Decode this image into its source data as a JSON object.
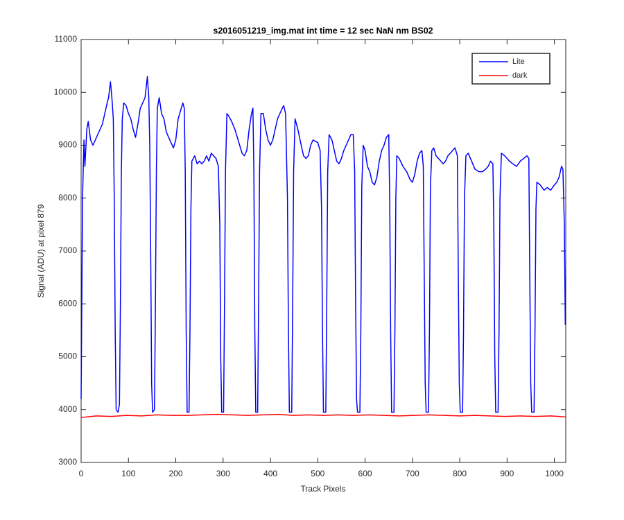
{
  "chart_data": {
    "type": "line",
    "title": "s2016051219_img.mat int time = 12 sec  NaN nm BS02",
    "xlabel": "Track Pixels",
    "ylabel": "Signal (ADU) at pixel 879",
    "xlim": [
      0,
      1024
    ],
    "ylim": [
      3000,
      11000
    ],
    "xticks": [
      0,
      100,
      200,
      300,
      400,
      500,
      600,
      700,
      800,
      900,
      1000
    ],
    "yticks": [
      3000,
      4000,
      5000,
      6000,
      7000,
      8000,
      9000,
      10000,
      11000
    ],
    "legend": "upper right",
    "grid": false,
    "series": [
      {
        "name": "Lite",
        "color": "#0000ff",
        "x": [
          0,
          3,
          6,
          8,
          12,
          15,
          20,
          25,
          30,
          35,
          40,
          45,
          50,
          55,
          58,
          62,
          65,
          68,
          70,
          72,
          74,
          78,
          81,
          83,
          85,
          87,
          90,
          95,
          100,
          105,
          110,
          115,
          120,
          125,
          130,
          135,
          140,
          143,
          145,
          147,
          149,
          151,
          155,
          157,
          159,
          161,
          165,
          170,
          175,
          180,
          185,
          190,
          195,
          200,
          205,
          210,
          215,
          218,
          220,
          222,
          224,
          228,
          230,
          232,
          234,
          240,
          245,
          250,
          255,
          260,
          265,
          270,
          275,
          280,
          285,
          290,
          293,
          295,
          297,
          301,
          303,
          305,
          308,
          312,
          318,
          325,
          330,
          335,
          340,
          345,
          350,
          355,
          360,
          363,
          365,
          367,
          369,
          373,
          375,
          377,
          380,
          385,
          390,
          395,
          400,
          405,
          410,
          415,
          420,
          425,
          428,
          432,
          436,
          438,
          440,
          445,
          447,
          449,
          452,
          458,
          465,
          470,
          475,
          480,
          485,
          490,
          500,
          505,
          508,
          510,
          512,
          517,
          519,
          521,
          524,
          530,
          535,
          540,
          545,
          550,
          555,
          560,
          565,
          570,
          575,
          578,
          580,
          582,
          584,
          589,
          591,
          593,
          596,
          600,
          605,
          610,
          615,
          620,
          625,
          630,
          635,
          640,
          645,
          650,
          652,
          654,
          656,
          661,
          663,
          665,
          667,
          672,
          680,
          688,
          695,
          700,
          705,
          710,
          715,
          720,
          723,
          725,
          727,
          729,
          734,
          736,
          738,
          741,
          745,
          750,
          755,
          760,
          765,
          770,
          775,
          780,
          785,
          790,
          795,
          797,
          799,
          801,
          806,
          808,
          810,
          813,
          818,
          825,
          832,
          840,
          848,
          855,
          860,
          865,
          870,
          872,
          874,
          876,
          881,
          883,
          885,
          888,
          895,
          900,
          905,
          912,
          920,
          928,
          935,
          942,
          946,
          948,
          950,
          952,
          957,
          959,
          961,
          963,
          970,
          978,
          985,
          992,
          1000,
          1005,
          1010,
          1015,
          1018,
          1021,
          1023
        ],
        "values": [
          4200,
          8000,
          9100,
          8600,
          9300,
          9450,
          9100,
          9000,
          9100,
          9200,
          9300,
          9400,
          9600,
          9800,
          9900,
          10200,
          9900,
          9500,
          8000,
          5500,
          4000,
          3950,
          4100,
          6000,
          8500,
          9500,
          9800,
          9750,
          9600,
          9500,
          9300,
          9150,
          9400,
          9700,
          9800,
          9900,
          10300,
          9900,
          9000,
          7000,
          4500,
          3950,
          4000,
          6000,
          8500,
          9700,
          9900,
          9600,
          9500,
          9250,
          9150,
          9050,
          8950,
          9100,
          9500,
          9650,
          9800,
          9700,
          8500,
          5500,
          3950,
          3950,
          5500,
          7800,
          8700,
          8800,
          8650,
          8700,
          8650,
          8700,
          8800,
          8700,
          8850,
          8800,
          8750,
          8600,
          7500,
          5000,
          3950,
          3950,
          6000,
          8500,
          9600,
          9550,
          9450,
          9300,
          9150,
          9000,
          8850,
          8800,
          8900,
          9300,
          9600,
          9700,
          8500,
          5500,
          3950,
          3950,
          6000,
          8500,
          9600,
          9600,
          9300,
          9100,
          9000,
          9100,
          9300,
          9500,
          9600,
          9700,
          9750,
          9600,
          8000,
          5500,
          3950,
          3950,
          6000,
          8500,
          9500,
          9300,
          9000,
          8800,
          8750,
          8800,
          9000,
          9100,
          9050,
          8900,
          7800,
          5500,
          3950,
          3950,
          6000,
          8500,
          9200,
          9100,
          8900,
          8700,
          8650,
          8750,
          8900,
          9000,
          9100,
          9200,
          9200,
          8500,
          6000,
          4200,
          3950,
          3950,
          5500,
          8200,
          9000,
          8900,
          8600,
          8500,
          8300,
          8250,
          8400,
          8700,
          8900,
          9000,
          9150,
          9200,
          8000,
          5500,
          3950,
          3950,
          5500,
          8000,
          8800,
          8750,
          8600,
          8500,
          8350,
          8300,
          8450,
          8700,
          8850,
          8900,
          8600,
          6500,
          4500,
          3950,
          3950,
          5500,
          8200,
          8900,
          8950,
          8800,
          8750,
          8700,
          8650,
          8700,
          8800,
          8850,
          8900,
          8950,
          8800,
          6500,
          4500,
          3950,
          3950,
          5500,
          8000,
          8800,
          8850,
          8700,
          8550,
          8500,
          8500,
          8550,
          8600,
          8700,
          8650,
          7500,
          5000,
          3950,
          3950,
          5500,
          8000,
          8850,
          8800,
          8750,
          8700,
          8650,
          8600,
          8700,
          8750,
          8800,
          8750,
          6500,
          4500,
          3950,
          3950,
          5500,
          7800,
          8300,
          8250,
          8150,
          8200,
          8150,
          8250,
          8300,
          8400,
          8600,
          8550,
          7500,
          5600
        ]
      },
      {
        "name": "dark",
        "color": "#ff0000",
        "x": [
          0,
          32,
          64,
          96,
          128,
          160,
          192,
          224,
          256,
          288,
          320,
          352,
          384,
          416,
          448,
          480,
          512,
          544,
          576,
          608,
          640,
          672,
          704,
          736,
          768,
          800,
          832,
          864,
          896,
          928,
          960,
          992,
          1024
        ],
        "values": [
          3850,
          3880,
          3870,
          3890,
          3880,
          3900,
          3890,
          3890,
          3900,
          3910,
          3900,
          3890,
          3900,
          3910,
          3890,
          3900,
          3890,
          3900,
          3890,
          3900,
          3890,
          3880,
          3890,
          3900,
          3890,
          3880,
          3890,
          3880,
          3870,
          3880,
          3870,
          3880,
          3860
        ]
      }
    ]
  }
}
